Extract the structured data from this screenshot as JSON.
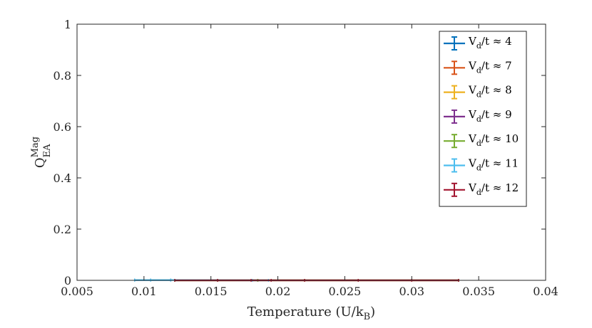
{
  "chart_data": {
    "type": "line",
    "xlabel": {
      "text": "Temperature (U/k",
      "sub": "B",
      "suffix": ")"
    },
    "ylabel": {
      "main": "Q",
      "sub": "EA",
      "sup": "Mag"
    },
    "xlim": [
      0.005,
      0.04
    ],
    "ylim": [
      0,
      1
    ],
    "xticks": [
      "0.005",
      "0.01",
      "0.015",
      "0.02",
      "0.025",
      "0.03",
      "0.035",
      "0.04"
    ],
    "xtick_values": [
      0.005,
      0.01,
      0.015,
      0.02,
      0.025,
      0.03,
      0.035,
      0.04
    ],
    "yticks": [
      "0",
      "0.2",
      "0.4",
      "0.6",
      "0.8",
      "1"
    ],
    "ytick_values": [
      0,
      0.2,
      0.4,
      0.6,
      0.8,
      1
    ],
    "grid": false,
    "legend_position": "top-right",
    "series": [
      {
        "name": "V_d/t ≈ 4",
        "label_main": "V",
        "label_sub": "d",
        "label_rest": "/t ≈ 4",
        "color": "#0072BD",
        "x": [
          0.0093,
          0.0105,
          0.012
        ],
        "y": [
          0.001,
          0.001,
          0.001
        ]
      },
      {
        "name": "V_d/t ≈ 7",
        "label_main": "V",
        "label_sub": "d",
        "label_rest": "/t ≈ 7",
        "color": "#D95319",
        "x": [
          0.0123,
          0.0155,
          0.0185,
          0.022,
          0.026,
          0.03,
          0.0335
        ],
        "y": [
          0,
          0,
          0,
          0,
          0,
          0,
          0
        ]
      },
      {
        "name": "V_d/t ≈ 8",
        "label_main": "V",
        "label_sub": "d",
        "label_rest": "/t ≈ 8",
        "color": "#EDB120",
        "x": [
          0.0123,
          0.0155,
          0.0185,
          0.022,
          0.026,
          0.03,
          0.0335
        ],
        "y": [
          0,
          0,
          0,
          0,
          0,
          0,
          0
        ]
      },
      {
        "name": "V_d/t ≈ 9",
        "label_main": "V",
        "label_sub": "d",
        "label_rest": "/t ≈ 9",
        "color": "#7E2F8E",
        "x": [
          0.0123,
          0.0155,
          0.0185,
          0.022,
          0.026,
          0.03,
          0.0335
        ],
        "y": [
          0,
          0,
          0,
          0,
          0,
          0,
          0
        ]
      },
      {
        "name": "V_d/t ≈ 10",
        "label_main": "V",
        "label_sub": "d",
        "label_rest": "/t ≈ 10",
        "color": "#77AC30",
        "x": [
          0.0123,
          0.0155,
          0.0185,
          0.022,
          0.026,
          0.03,
          0.0335
        ],
        "y": [
          0,
          0,
          0,
          0,
          0,
          0,
          0
        ]
      },
      {
        "name": "V_d/t ≈ 11",
        "label_main": "V",
        "label_sub": "d",
        "label_rest": "/t ≈ 11",
        "color": "#4DBEEE",
        "x": [
          0.0093,
          0.0105,
          0.012,
          0.0181,
          0.0193
        ],
        "y": [
          0.001,
          0.001,
          0.001,
          0,
          0
        ]
      },
      {
        "name": "V_d/t ≈ 12",
        "label_main": "V",
        "label_sub": "d",
        "label_rest": "/t ≈ 12",
        "color": "#A2142F",
        "x": [
          0.0123,
          0.0155,
          0.018,
          0.0195,
          0.022,
          0.026,
          0.03,
          0.0335
        ],
        "y": [
          0,
          0,
          0,
          0,
          0,
          0,
          0,
          0
        ]
      }
    ]
  }
}
